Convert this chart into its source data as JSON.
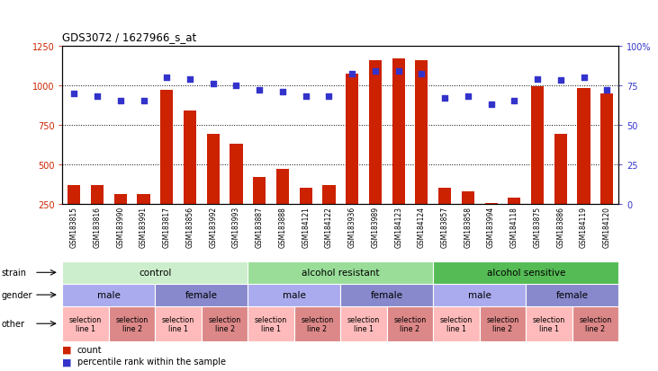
{
  "title": "GDS3072 / 1627966_s_at",
  "samples": [
    "GSM183815",
    "GSM183816",
    "GSM183990",
    "GSM183991",
    "GSM183817",
    "GSM183856",
    "GSM183992",
    "GSM183993",
    "GSM183887",
    "GSM183888",
    "GSM184121",
    "GSM184122",
    "GSM183936",
    "GSM183989",
    "GSM184123",
    "GSM184124",
    "GSM183857",
    "GSM183858",
    "GSM183994",
    "GSM184118",
    "GSM183875",
    "GSM183886",
    "GSM184119",
    "GSM184120"
  ],
  "counts": [
    370,
    370,
    310,
    310,
    970,
    840,
    690,
    630,
    420,
    470,
    350,
    370,
    1070,
    1160,
    1170,
    1160,
    350,
    330,
    255,
    290,
    990,
    690,
    980,
    950
  ],
  "percentiles": [
    70,
    68,
    65,
    65,
    80,
    79,
    76,
    75,
    72,
    71,
    68,
    68,
    82,
    84,
    84,
    82,
    67,
    68,
    63,
    65,
    79,
    78,
    80,
    72
  ],
  "ylim_left": [
    250,
    1250
  ],
  "ylim_right": [
    0,
    100
  ],
  "yticks_left": [
    250,
    500,
    750,
    1000,
    1250
  ],
  "yticks_right": [
    0,
    25,
    50,
    75,
    100
  ],
  "bar_color": "#cc2200",
  "dot_color": "#3333cc",
  "strain_groups": [
    {
      "label": "control",
      "start": 0,
      "end": 8,
      "color": "#cceecc"
    },
    {
      "label": "alcohol resistant",
      "start": 8,
      "end": 16,
      "color": "#99dd99"
    },
    {
      "label": "alcohol sensitive",
      "start": 16,
      "end": 24,
      "color": "#55bb55"
    }
  ],
  "gender_groups": [
    {
      "label": "male",
      "start": 0,
      "end": 4,
      "color": "#aaaaee"
    },
    {
      "label": "female",
      "start": 4,
      "end": 8,
      "color": "#8888cc"
    },
    {
      "label": "male",
      "start": 8,
      "end": 12,
      "color": "#aaaaee"
    },
    {
      "label": "female",
      "start": 12,
      "end": 16,
      "color": "#8888cc"
    },
    {
      "label": "male",
      "start": 16,
      "end": 20,
      "color": "#aaaaee"
    },
    {
      "label": "female",
      "start": 20,
      "end": 24,
      "color": "#8888cc"
    }
  ],
  "other_groups": [
    {
      "label": "selection\nline 1",
      "start": 0,
      "end": 2,
      "color": "#ffbbbb"
    },
    {
      "label": "selection\nline 2",
      "start": 2,
      "end": 4,
      "color": "#dd8888"
    },
    {
      "label": "selection\nline 1",
      "start": 4,
      "end": 6,
      "color": "#ffbbbb"
    },
    {
      "label": "selection\nline 2",
      "start": 6,
      "end": 8,
      "color": "#dd8888"
    },
    {
      "label": "selection\nline 1",
      "start": 8,
      "end": 10,
      "color": "#ffbbbb"
    },
    {
      "label": "selection\nline 2",
      "start": 10,
      "end": 12,
      "color": "#dd8888"
    },
    {
      "label": "selection\nline 1",
      "start": 12,
      "end": 14,
      "color": "#ffbbbb"
    },
    {
      "label": "selection\nline 2",
      "start": 14,
      "end": 16,
      "color": "#dd8888"
    },
    {
      "label": "selection\nline 1",
      "start": 16,
      "end": 18,
      "color": "#ffbbbb"
    },
    {
      "label": "selection\nline 2",
      "start": 18,
      "end": 20,
      "color": "#dd8888"
    },
    {
      "label": "selection\nline 1",
      "start": 20,
      "end": 22,
      "color": "#ffbbbb"
    },
    {
      "label": "selection\nline 2",
      "start": 22,
      "end": 24,
      "color": "#dd8888"
    }
  ],
  "legend_count_label": "count",
  "legend_pct_label": "percentile rank within the sample"
}
